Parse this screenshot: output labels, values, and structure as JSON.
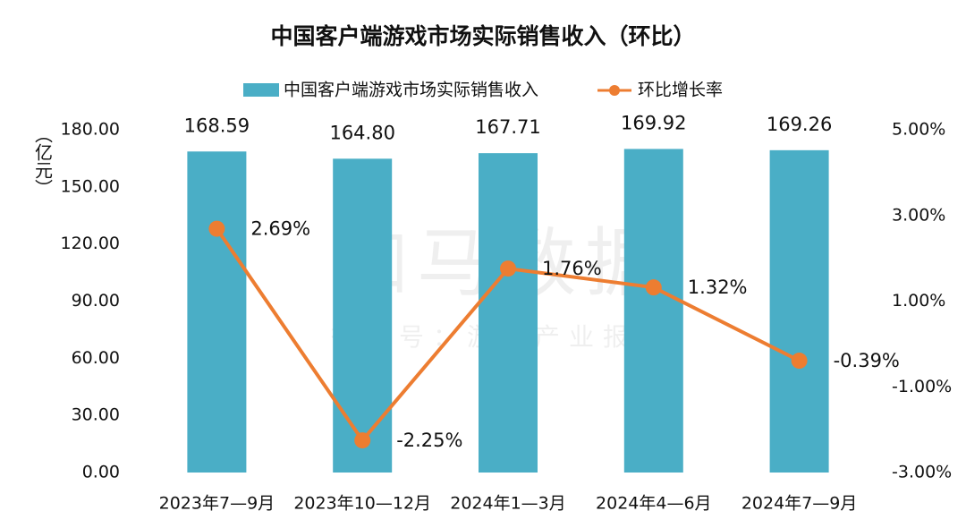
{
  "chart_data": {
    "type": "bar_line",
    "title": "中国客户端游戏市场实际销售收入（环比）",
    "y_label": "（亿元）",
    "watermark": "伽马数据",
    "watermark_sub": "微信号：游戏产业报告",
    "categories": [
      "2023年7—9月",
      "2023年10—12月",
      "2024年1—3月",
      "2024年4—6月",
      "2024年7—9月"
    ],
    "series": [
      {
        "name": "中国客户端游戏市场实际销售收入",
        "type": "bar",
        "color": "#4aaec6",
        "values": [
          168.59,
          164.8,
          167.71,
          169.92,
          169.26
        ],
        "value_labels": [
          "168.59",
          "164.80",
          "167.71",
          "169.92",
          "169.26"
        ]
      },
      {
        "name": "环比增长率",
        "type": "line",
        "axis": "y2",
        "color": "#ed7d31",
        "values": [
          2.69,
          -2.25,
          1.76,
          1.32,
          -0.39
        ],
        "value_labels": [
          "2.69%",
          "-2.25%",
          "1.76%",
          "1.32%",
          "-0.39%"
        ]
      }
    ],
    "ylim": [
      0,
      180
    ],
    "yticks": [
      {
        "value": 0,
        "label": "0.00"
      },
      {
        "value": 30,
        "label": "30.00"
      },
      {
        "value": 60,
        "label": "60.00"
      },
      {
        "value": 90,
        "label": "90.00"
      },
      {
        "value": 120,
        "label": "120.00"
      },
      {
        "value": 150,
        "label": "150.00"
      },
      {
        "value": 180,
        "label": "180.00"
      }
    ],
    "y2lim": [
      -3,
      5
    ],
    "y2ticks": [
      {
        "value": -3,
        "label": "-3.00%"
      },
      {
        "value": -1,
        "label": "-1.00%"
      },
      {
        "value": 1,
        "label": "1.00%"
      },
      {
        "value": 3,
        "label": "3.00%"
      },
      {
        "value": 5,
        "label": "5.00%"
      }
    ],
    "grid": false,
    "legend": "top"
  }
}
